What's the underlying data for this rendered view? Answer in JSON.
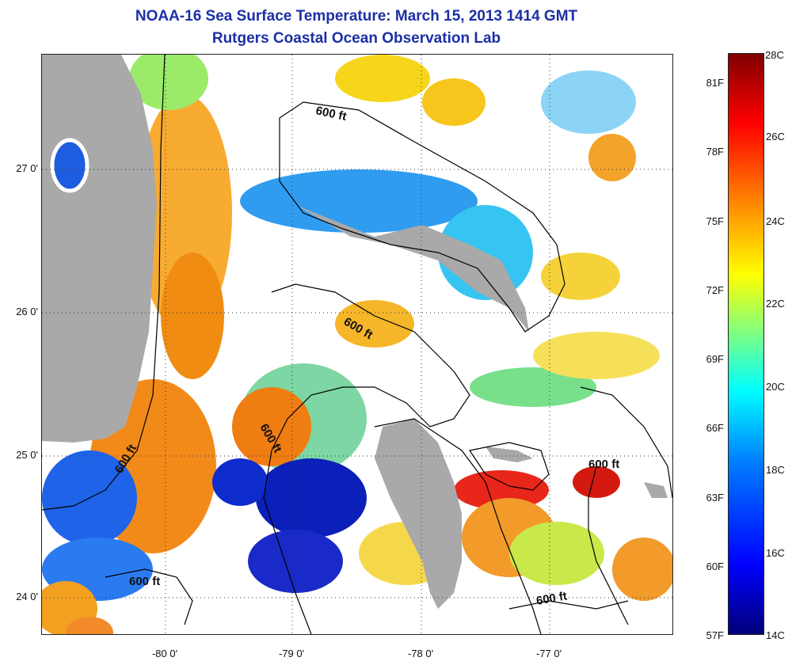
{
  "title": {
    "line1": "NOAA-16 Sea Surface Temperature:  March 15, 2013 1414 GMT",
    "line2": "Rutgers Coastal Ocean Observation Lab"
  },
  "colors": {
    "title": "#1c2fa6",
    "land": "#a9a9a9",
    "cloud": "#ffffff",
    "contour": "#000000"
  },
  "map": {
    "latitude_labels": [
      "27 0'",
      "26 0'",
      "25 0'",
      "24 0'"
    ],
    "longitude_labels": [
      "-80 0'",
      "-79 0'",
      "-78 0'",
      "-77 0'"
    ],
    "contour_labels": [
      "600 ft",
      "600 ft",
      "600 ft",
      "600 ft",
      "600 ft",
      "600 ft"
    ]
  },
  "colorbar": {
    "fahrenheit_labels": [
      "81F",
      "78F",
      "75F",
      "72F",
      "69F",
      "66F",
      "63F",
      "60F"
    ],
    "celsius_labels": [
      "26C",
      "24C",
      "22C",
      "20C",
      "18C",
      "16C"
    ],
    "top_label": "28C",
    "bottom_left_label": "57F",
    "bottom_right_label": "14C"
  }
}
